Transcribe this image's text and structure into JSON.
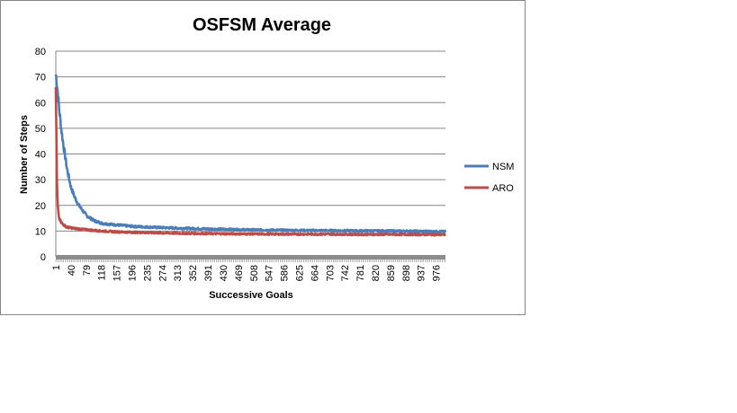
{
  "chart_data": {
    "type": "line",
    "title": "OSFSM Average",
    "xlabel": "Successive  Goals",
    "ylabel": "Number of Steps",
    "ylim": [
      0,
      80
    ],
    "yticks": [
      0,
      10,
      20,
      30,
      40,
      50,
      60,
      70,
      80
    ],
    "xtick_labels": [
      "1",
      "40",
      "79",
      "118",
      "157",
      "196",
      "235",
      "274",
      "313",
      "352",
      "391",
      "430",
      "469",
      "508",
      "547",
      "586",
      "625",
      "664",
      "703",
      "742",
      "781",
      "820",
      "859",
      "898",
      "937",
      "976"
    ],
    "xlim": [
      1,
      1000
    ],
    "grid": "horizontal",
    "legend_position": "right",
    "series": [
      {
        "name": "NSM",
        "color": "#4a7ebb",
        "x": [
          1,
          3,
          6,
          10,
          15,
          20,
          30,
          40,
          50,
          60,
          70,
          80,
          100,
          120,
          150,
          200,
          250,
          300,
          400,
          500,
          600,
          700,
          800,
          900,
          1000
        ],
        "values": [
          71,
          69,
          64,
          57,
          50,
          44,
          34,
          27,
          23,
          20,
          18,
          16,
          14,
          13,
          12.5,
          11.8,
          11.5,
          11.2,
          10.8,
          10.5,
          10.3,
          10.2,
          10.1,
          10.0,
          9.8
        ]
      },
      {
        "name": "ARO",
        "color": "#be4b48",
        "x": [
          1,
          2,
          3,
          4,
          5,
          6,
          8,
          10,
          15,
          20,
          30,
          50,
          80,
          120,
          160,
          200,
          300,
          400,
          500,
          600,
          700,
          800,
          900,
          1000
        ],
        "values": [
          64,
          55,
          42,
          30,
          24,
          20,
          17,
          15,
          13.5,
          12.5,
          11.5,
          11,
          10.5,
          10,
          9.7,
          9.5,
          9.2,
          9.0,
          8.9,
          8.8,
          8.8,
          8.7,
          8.7,
          8.6
        ]
      }
    ]
  }
}
